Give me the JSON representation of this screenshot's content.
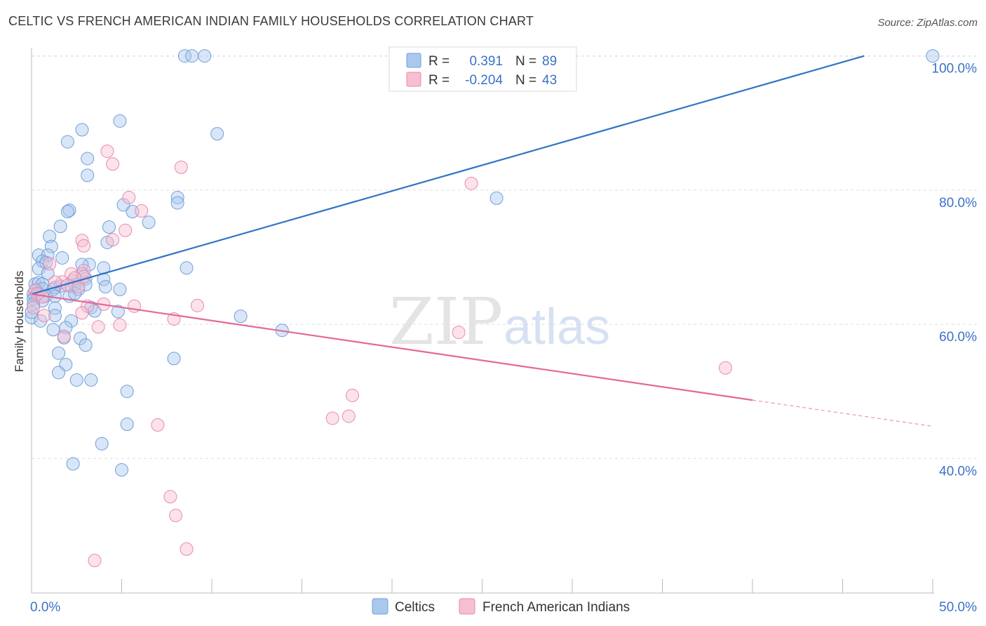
{
  "title": "CELTIC VS FRENCH AMERICAN INDIAN FAMILY HOUSEHOLDS CORRELATION CHART",
  "source": "Source: ZipAtlas.com",
  "watermark": {
    "zip": "ZIP",
    "atlas": "atlas"
  },
  "legend_top": [
    {
      "r_label": "R =",
      "r_value": "0.391",
      "n_label": "N =",
      "n_value": "89",
      "fill": "#aac8ee",
      "stroke": "#6f9fd8"
    },
    {
      "r_label": "R =",
      "r_value": "-0.204",
      "n_label": "N =",
      "n_value": "43",
      "fill": "#f6bfd2",
      "stroke": "#e88aab"
    }
  ],
  "legend_bottom": [
    {
      "label": "Celtics",
      "fill": "#aac8ee",
      "stroke": "#6f9fd8"
    },
    {
      "label": "French American Indians",
      "fill": "#f6bfd2",
      "stroke": "#e88aab"
    }
  ],
  "colors": {
    "blue_line": "#2f74c9",
    "pink_line": "#e4689a",
    "axis_text": "#3a72c6",
    "grid": "#dddddd"
  },
  "chart_data": {
    "type": "scatter",
    "title": "CELTIC VS FRENCH AMERICAN INDIAN FAMILY HOUSEHOLDS CORRELATION CHART",
    "xlabel": "",
    "ylabel": "Family Households",
    "xlim": [
      0,
      50
    ],
    "ylim": [
      20,
      102
    ],
    "x_tick_labels": [
      {
        "value": 0,
        "label": "0.0%"
      },
      {
        "value": 50,
        "label": "50.0%"
      }
    ],
    "y_tick_labels": [
      {
        "value": 40,
        "label": "40.0%"
      },
      {
        "value": 60,
        "label": "60.0%"
      },
      {
        "value": 80,
        "label": "80.0%"
      },
      {
        "value": 100,
        "label": "100.0%"
      }
    ],
    "series": [
      {
        "name": "Celtics",
        "color": "#6f9fd8",
        "trend": {
          "x": [
            0,
            46.2
          ],
          "y": [
            64.5,
            100
          ]
        },
        "points": [
          [
            8.5,
            100
          ],
          [
            8.9,
            100
          ],
          [
            9.6,
            100
          ],
          [
            50,
            100
          ],
          [
            4.9,
            90.3
          ],
          [
            10.3,
            88.4
          ],
          [
            2.8,
            89
          ],
          [
            2.0,
            87.2
          ],
          [
            3.1,
            84.7
          ],
          [
            3.1,
            82.2
          ],
          [
            8.1,
            78.9
          ],
          [
            8.1,
            78.1
          ],
          [
            25.8,
            78.8
          ],
          [
            5.1,
            77.8
          ],
          [
            5.6,
            76.8
          ],
          [
            2.1,
            77
          ],
          [
            2.0,
            76.8
          ],
          [
            6.5,
            75.2
          ],
          [
            1.6,
            74.6
          ],
          [
            4.3,
            74.5
          ],
          [
            1.0,
            73.1
          ],
          [
            4.2,
            72.2
          ],
          [
            1.1,
            71.6
          ],
          [
            0.4,
            70.3
          ],
          [
            0.9,
            70.3
          ],
          [
            1.7,
            69.9
          ],
          [
            0.6,
            69.4
          ],
          [
            0.8,
            69.2
          ],
          [
            3.2,
            68.9
          ],
          [
            2.8,
            68.9
          ],
          [
            0.4,
            68.3
          ],
          [
            4.0,
            68.4
          ],
          [
            8.6,
            68.4
          ],
          [
            0.9,
            67.6
          ],
          [
            2.8,
            67.5
          ],
          [
            3.0,
            66.8
          ],
          [
            2.3,
            66.5
          ],
          [
            4.0,
            66.7
          ],
          [
            0.2,
            66
          ],
          [
            0.4,
            66.2
          ],
          [
            0.6,
            66
          ],
          [
            2.4,
            65.9
          ],
          [
            3.0,
            65.9
          ],
          [
            1.6,
            65.7
          ],
          [
            2.2,
            65.7
          ],
          [
            1.3,
            65.5
          ],
          [
            0.6,
            65.3
          ],
          [
            0.2,
            65
          ],
          [
            1.2,
            65.2
          ],
          [
            2.6,
            65.2
          ],
          [
            4.1,
            65.6
          ],
          [
            4.9,
            65.2
          ],
          [
            0.1,
            64.5
          ],
          [
            0.4,
            64.6
          ],
          [
            0.2,
            64.1
          ],
          [
            0.8,
            64.2
          ],
          [
            1.3,
            64.2
          ],
          [
            2.1,
            64.2
          ],
          [
            2.4,
            64.6
          ],
          [
            0.1,
            63.8
          ],
          [
            0.6,
            63.5
          ],
          [
            0.1,
            63
          ],
          [
            3.3,
            62.5
          ],
          [
            1.3,
            62.4
          ],
          [
            4.8,
            61.9
          ],
          [
            3.5,
            62
          ],
          [
            1.3,
            61.3
          ],
          [
            11.6,
            61.2
          ],
          [
            0,
            61
          ],
          [
            2.2,
            60.5
          ],
          [
            1.9,
            59.5
          ],
          [
            1.2,
            59.2
          ],
          [
            13.9,
            59.1
          ],
          [
            1.8,
            58
          ],
          [
            2.7,
            57.9
          ],
          [
            3.0,
            56.9
          ],
          [
            1.5,
            55.7
          ],
          [
            7.9,
            54.9
          ],
          [
            1.9,
            54
          ],
          [
            1.5,
            52.8
          ],
          [
            2.5,
            51.7
          ],
          [
            3.3,
            51.7
          ],
          [
            5.3,
            50
          ],
          [
            5.3,
            45.1
          ],
          [
            3.9,
            42.2
          ],
          [
            2.3,
            39.2
          ],
          [
            5.0,
            38.3
          ],
          [
            0,
            61.8
          ],
          [
            0.5,
            60.5
          ]
        ]
      },
      {
        "name": "French American Indians",
        "color": "#e88aab",
        "trend": {
          "x": [
            0,
            40
          ],
          "y": [
            64.5,
            48.7
          ],
          "x_dashed": [
            40,
            50
          ],
          "y_dashed": [
            48.7,
            44.8
          ]
        },
        "points": [
          [
            4.2,
            85.8
          ],
          [
            4.5,
            83.9
          ],
          [
            8.3,
            83.4
          ],
          [
            24.4,
            81
          ],
          [
            5.4,
            78.9
          ],
          [
            6.1,
            76.9
          ],
          [
            5.2,
            74
          ],
          [
            2.8,
            72.5
          ],
          [
            4.5,
            72.6
          ],
          [
            2.9,
            71.7
          ],
          [
            1.0,
            69
          ],
          [
            2.9,
            68
          ],
          [
            2.2,
            67.5
          ],
          [
            2.9,
            67.1
          ],
          [
            2.4,
            66.9
          ],
          [
            1.7,
            66.3
          ],
          [
            1.3,
            66.3
          ],
          [
            2.0,
            65.8
          ],
          [
            2.6,
            65.6
          ],
          [
            0.2,
            65.1
          ],
          [
            0.3,
            64.5
          ],
          [
            0.6,
            64.1
          ],
          [
            3.1,
            62.7
          ],
          [
            4.0,
            63
          ],
          [
            9.2,
            62.8
          ],
          [
            5.7,
            62.7
          ],
          [
            2.8,
            61.7
          ],
          [
            0.7,
            61.3
          ],
          [
            7.9,
            60.8
          ],
          [
            4.9,
            59.9
          ],
          [
            3.7,
            59.6
          ],
          [
            23.7,
            58.8
          ],
          [
            1.8,
            58.2
          ],
          [
            38.5,
            53.5
          ],
          [
            17.8,
            49.4
          ],
          [
            17.6,
            46.3
          ],
          [
            16.7,
            46
          ],
          [
            7.0,
            45
          ],
          [
            7.7,
            34.3
          ],
          [
            8.0,
            31.5
          ],
          [
            8.6,
            26.5
          ],
          [
            3.5,
            24.8
          ],
          [
            0.1,
            62.5
          ]
        ]
      }
    ]
  }
}
